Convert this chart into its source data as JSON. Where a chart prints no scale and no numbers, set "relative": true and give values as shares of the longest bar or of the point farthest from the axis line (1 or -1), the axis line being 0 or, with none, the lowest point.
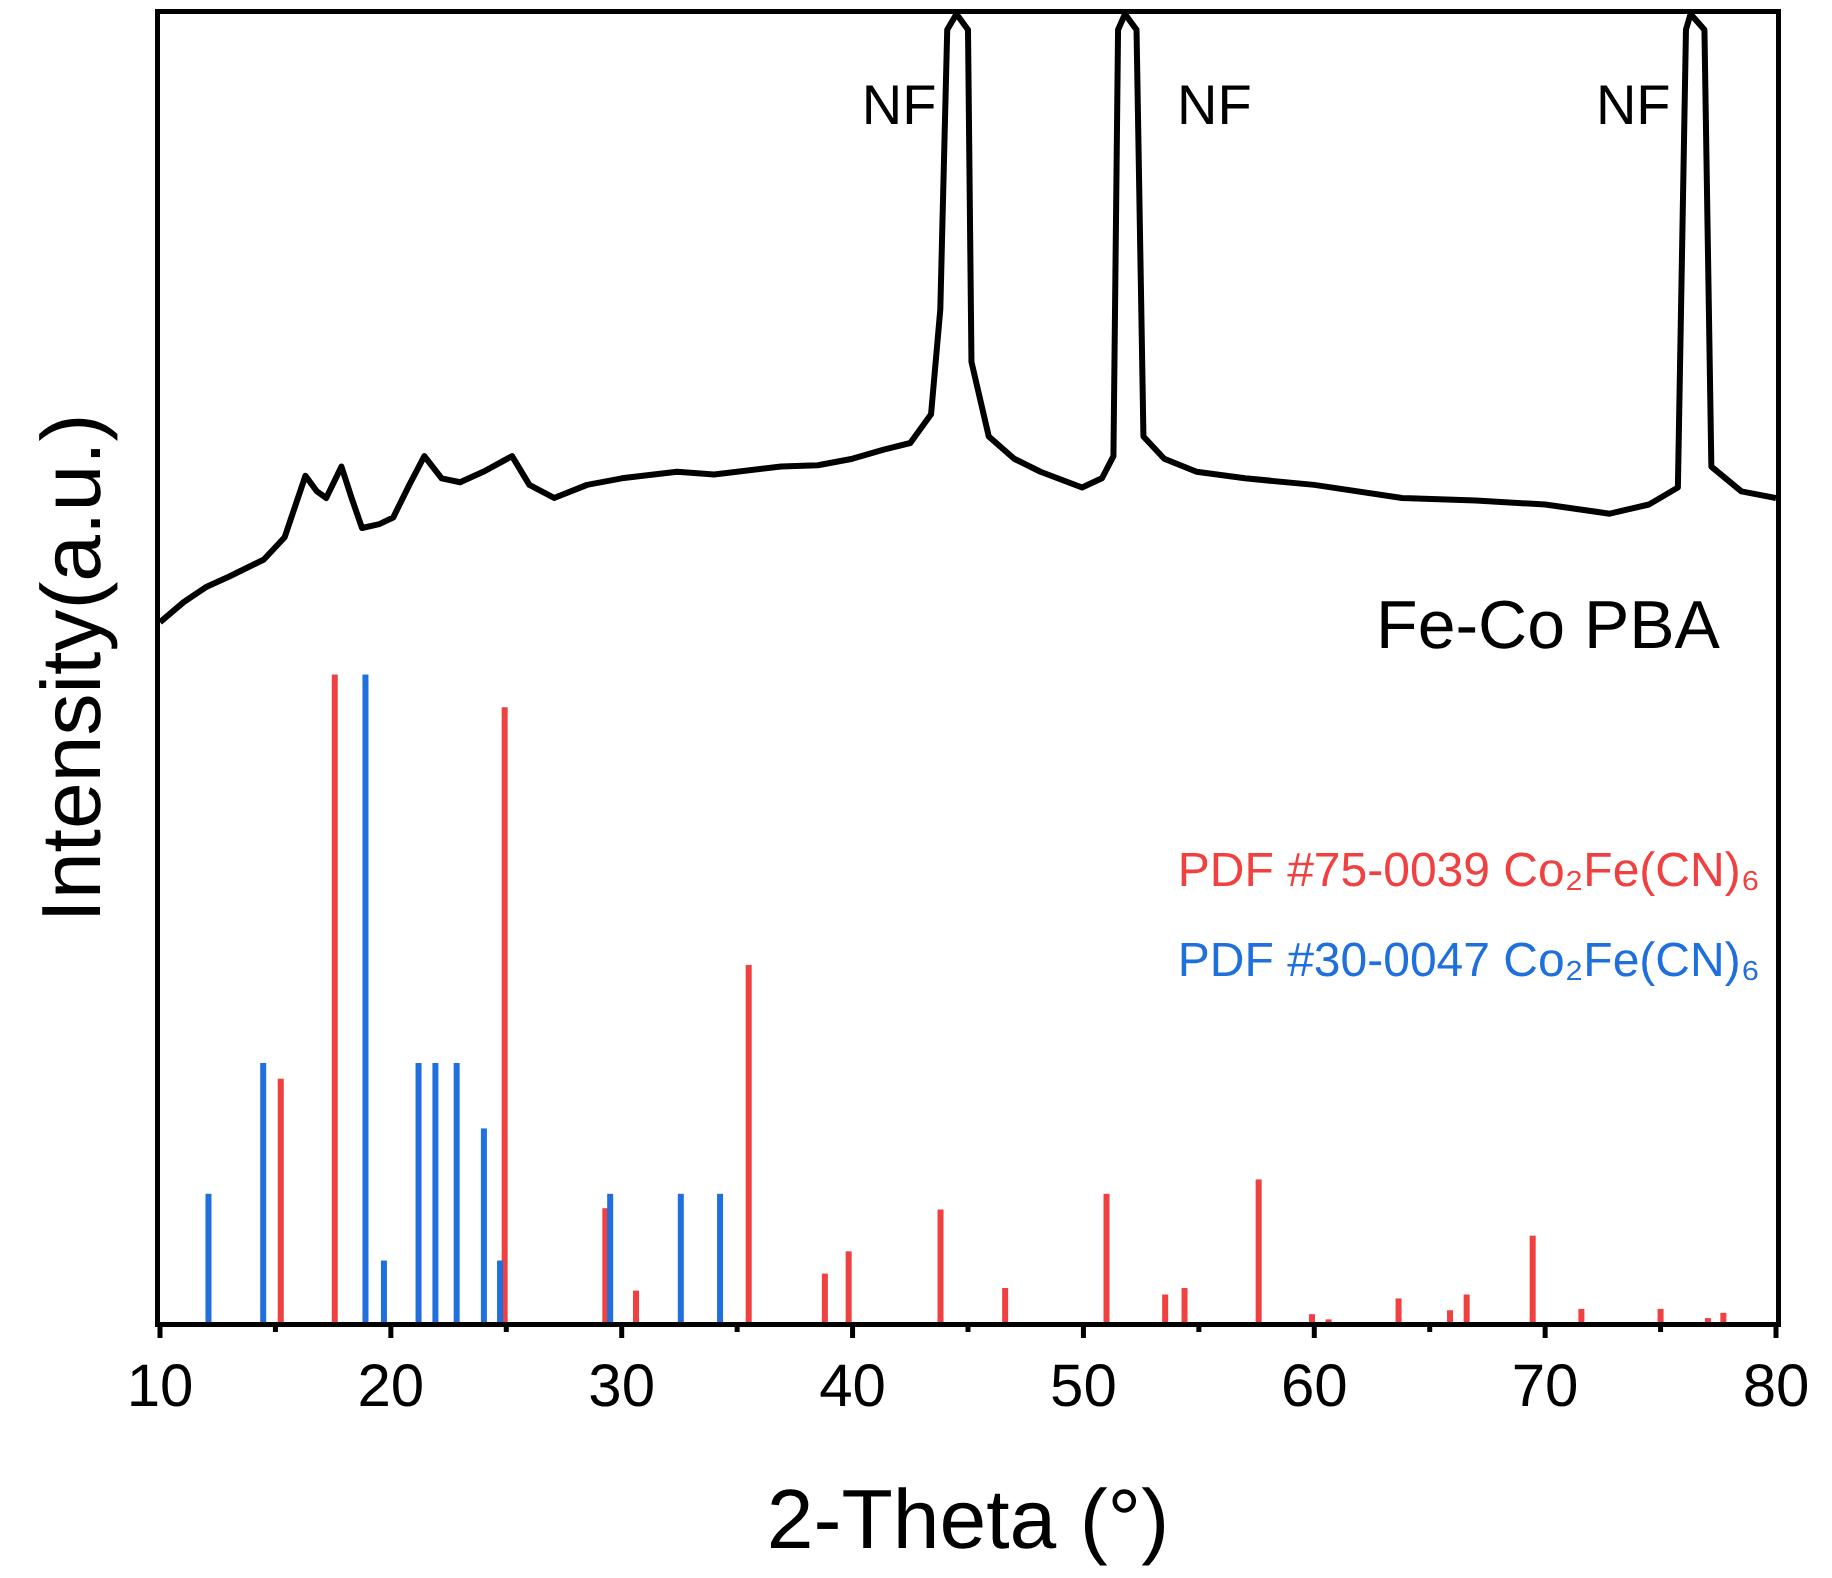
{
  "chart_data": {
    "type": "line",
    "relative": true,
    "xlabel": "2-Theta (°)",
    "ylabel": "Intensity(a.u.)",
    "xlim": [
      10,
      80
    ],
    "xticks": [
      10,
      {
        "value": 15,
        "label": null
      },
      20,
      {
        "value": 25,
        "label": null
      },
      30,
      {
        "value": 35,
        "label": null
      },
      40,
      {
        "value": 45,
        "label": null
      },
      50,
      {
        "value": 55,
        "label": null
      },
      60,
      {
        "value": 65,
        "label": null
      },
      70,
      {
        "value": 75,
        "label": null
      },
      80
    ],
    "grid": false,
    "legend": "right",
    "marker": "none",
    "line_style": "solid",
    "annotations": [
      {
        "text": "NF",
        "x": 44.5,
        "y": 1
      },
      {
        "text": "NF",
        "x": 51.8,
        "y": 1
      },
      {
        "text": "NF",
        "x": 76.3,
        "y": 1
      }
    ],
    "series": [
      {
        "name": "Fe-Co PBA",
        "color": "#000000",
        "x": [
          10,
          11,
          12,
          13,
          14.5,
          15.4,
          16.3,
          16.8,
          17.2,
          17.86,
          18.3,
          18.75,
          19.5,
          20.1,
          20.8,
          21.45,
          22.2,
          23,
          24,
          25.25,
          26,
          27.07,
          28.5,
          30,
          32.4,
          34,
          36.9,
          38.5,
          40,
          41.35,
          42.5,
          43.4,
          43.8,
          44.1,
          44.5,
          45,
          45.15,
          45.9,
          47,
          48.14,
          49.94,
          50.8,
          51.3,
          51.5,
          51.8,
          52.3,
          52.6,
          53.5,
          54.9,
          57,
          60,
          63.8,
          67,
          70,
          72.8,
          74.5,
          75.75,
          76.1,
          76.3,
          76.9,
          77.2,
          78.5,
          80
        ],
        "values": [
          0.535,
          0.55,
          0.562,
          0.57,
          0.583,
          0.6,
          0.647,
          0.635,
          0.63,
          0.654,
          0.63,
          0.607,
          0.61,
          0.615,
          0.64,
          0.662,
          0.645,
          0.642,
          0.65,
          0.662,
          0.64,
          0.63,
          0.64,
          0.645,
          0.65,
          0.648,
          0.654,
          0.655,
          0.66,
          0.667,
          0.672,
          0.694,
          0.774,
          0.988,
          1,
          0.988,
          0.734,
          0.677,
          0.66,
          0.65,
          0.638,
          0.645,
          0.662,
          0.988,
          1,
          0.988,
          0.677,
          0.66,
          0.65,
          0.645,
          0.64,
          0.63,
          0.628,
          0.625,
          0.618,
          0.625,
          0.638,
          0.988,
          1,
          0.988,
          0.654,
          0.635,
          0.63
        ]
      },
      {
        "name": "PDF #75-0039 Co₂Fe(CN)₆",
        "type": "bar",
        "color": "#f04040",
        "x": [
          15.23,
          17.57,
          24.93,
          29.29,
          30.62,
          35.5,
          38.8,
          39.83,
          43.81,
          46.61,
          51.0,
          53.54,
          54.38,
          57.59,
          59.9,
          60.62,
          63.65,
          65.88,
          66.6,
          69.46,
          71.57,
          75.0,
          77.05,
          77.72
        ],
        "values": [
          0.186,
          0.495,
          0.47,
          0.087,
          0.024,
          0.273,
          0.037,
          0.054,
          0.086,
          0.026,
          0.098,
          0.021,
          0.026,
          0.109,
          0.006,
          0.002,
          0.018,
          0.009,
          0.021,
          0.066,
          0.01,
          0.01,
          0.003,
          0.007
        ]
      },
      {
        "name": "PDF #30-0047 Co₂Fe(CN)₆",
        "type": "bar",
        "color": "#1f6fdc",
        "x": [
          12.1,
          14.47,
          18.9,
          19.7,
          21.2,
          21.93,
          22.85,
          24.03,
          24.73,
          29.5,
          32.56,
          34.26
        ],
        "values": [
          0.098,
          0.198,
          0.495,
          0.047,
          0.198,
          0.198,
          0.198,
          0.148,
          0.047,
          0.098,
          0.098,
          0.098
        ]
      }
    ]
  }
}
